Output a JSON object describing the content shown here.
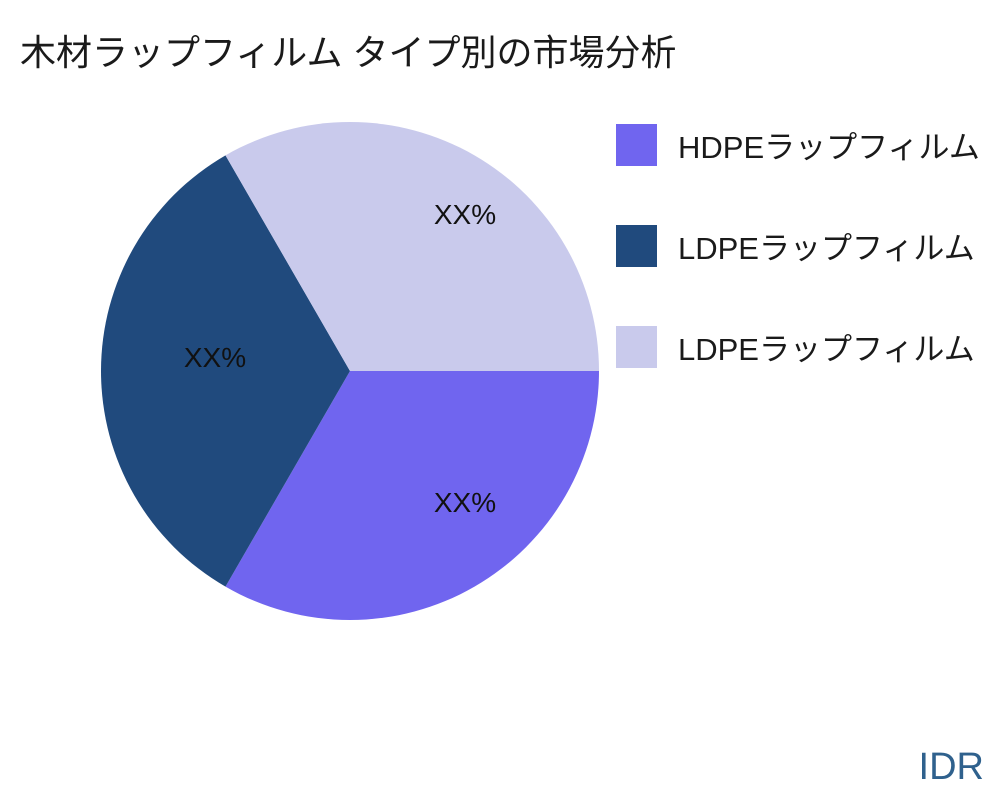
{
  "title": "木材ラップフィルム タイプ別の市場分析",
  "watermark": "IDR",
  "chart_data": {
    "type": "pie",
    "title": "木材ラップフィルム タイプ別の市場分析",
    "start_angle_deg": 0,
    "direction": "clockwise",
    "legend_position": "right",
    "background_color": "#ffffff",
    "slices": [
      {
        "label": "HDPEラップフィルム",
        "value": 33.33,
        "display_pct": "XX%",
        "color": "#7065EF"
      },
      {
        "label": "LDPEラップフィルム",
        "value": 33.33,
        "display_pct": "XX%",
        "color": "#204A7D"
      },
      {
        "label": "LDPEラップフィルム",
        "value": 33.33,
        "display_pct": "XX%",
        "color": "#C9CAEC"
      }
    ],
    "watermark_color": "#2F618D"
  }
}
